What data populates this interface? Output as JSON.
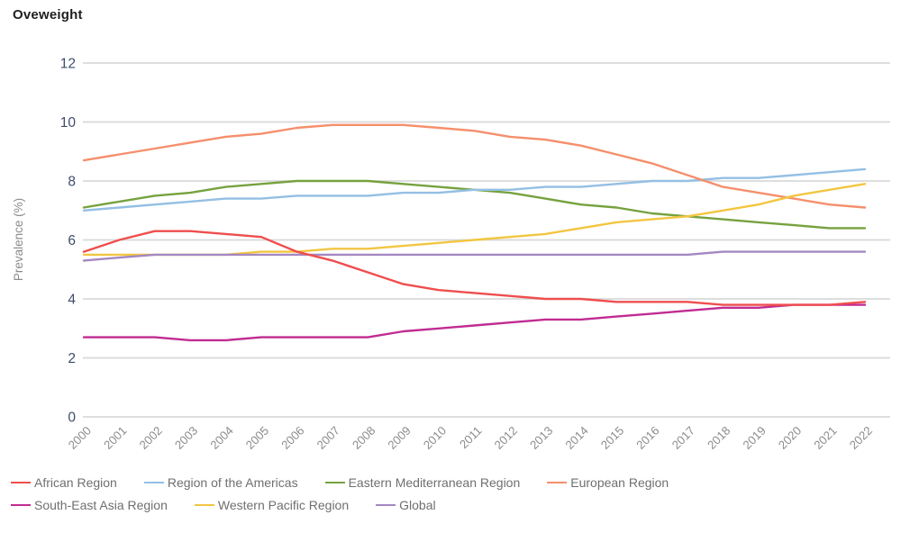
{
  "title": "Oveweight",
  "chart_data": {
    "type": "line",
    "title": "Oveweight",
    "ylabel": "Prevalence (%)",
    "xlabel": "",
    "ylim": [
      0,
      12
    ],
    "yticks": [
      0,
      2,
      4,
      6,
      8,
      10,
      12
    ],
    "grid": true,
    "legend_position": "bottom",
    "legend_rows": [
      [
        0,
        1,
        2,
        3
      ],
      [
        4,
        5,
        6
      ]
    ],
    "x": [
      2000,
      2001,
      2002,
      2003,
      2004,
      2005,
      2006,
      2007,
      2008,
      2009,
      2010,
      2011,
      2012,
      2013,
      2014,
      2015,
      2016,
      2017,
      2018,
      2019,
      2020,
      2021,
      2022
    ],
    "series": [
      {
        "name": "African Region",
        "color": "#ef4e4e",
        "values": [
          5.6,
          6.0,
          6.3,
          6.3,
          6.2,
          6.1,
          5.6,
          5.3,
          4.9,
          4.5,
          4.3,
          4.2,
          4.1,
          4.0,
          4.0,
          3.9,
          3.9,
          3.9,
          3.8,
          3.8,
          3.8,
          3.8,
          3.9
        ]
      },
      {
        "name": "Region of the Americas",
        "color": "#94bfe4",
        "values": [
          7.0,
          7.1,
          7.2,
          7.3,
          7.4,
          7.4,
          7.5,
          7.5,
          7.5,
          7.6,
          7.6,
          7.7,
          7.7,
          7.8,
          7.8,
          7.9,
          8.0,
          8.0,
          8.1,
          8.1,
          8.2,
          8.3,
          8.4
        ]
      },
      {
        "name": "Eastern Mediterranean Region",
        "color": "#76a23f",
        "values": [
          7.1,
          7.3,
          7.5,
          7.6,
          7.8,
          7.9,
          8.0,
          8.0,
          8.0,
          7.9,
          7.8,
          7.7,
          7.6,
          7.4,
          7.2,
          7.1,
          6.9,
          6.8,
          6.7,
          6.6,
          6.5,
          6.4,
          6.4
        ]
      },
      {
        "name": "European Region",
        "color": "#f58f6c",
        "values": [
          8.7,
          8.9,
          9.1,
          9.3,
          9.5,
          9.6,
          9.8,
          9.9,
          9.9,
          9.9,
          9.8,
          9.7,
          9.5,
          9.4,
          9.2,
          8.9,
          8.6,
          8.2,
          7.8,
          7.6,
          7.4,
          7.2,
          7.1
        ]
      },
      {
        "name": "South-East Asia Region",
        "color": "#c02c92",
        "values": [
          2.7,
          2.7,
          2.7,
          2.6,
          2.6,
          2.7,
          2.7,
          2.7,
          2.7,
          2.9,
          3.0,
          3.1,
          3.2,
          3.3,
          3.3,
          3.4,
          3.5,
          3.6,
          3.7,
          3.7,
          3.8,
          3.8,
          3.8
        ]
      },
      {
        "name": "Western Pacific Region",
        "color": "#f2c641",
        "values": [
          5.5,
          5.5,
          5.5,
          5.5,
          5.5,
          5.6,
          5.6,
          5.7,
          5.7,
          5.8,
          5.9,
          6.0,
          6.1,
          6.2,
          6.4,
          6.6,
          6.7,
          6.8,
          7.0,
          7.2,
          7.5,
          7.7,
          7.9
        ]
      },
      {
        "name": "Global",
        "color": "#a488c2",
        "values": [
          5.3,
          5.4,
          5.5,
          5.5,
          5.5,
          5.5,
          5.5,
          5.5,
          5.5,
          5.5,
          5.5,
          5.5,
          5.5,
          5.5,
          5.5,
          5.5,
          5.5,
          5.5,
          5.6,
          5.6,
          5.6,
          5.6,
          5.6
        ]
      }
    ],
    "axis_colors": {
      "y_tick_label": "#3e4d6b",
      "x_tick_label": "#8c8c8c",
      "axis_title": "#8c8c8c",
      "gridline": "#d9d9d9"
    }
  }
}
